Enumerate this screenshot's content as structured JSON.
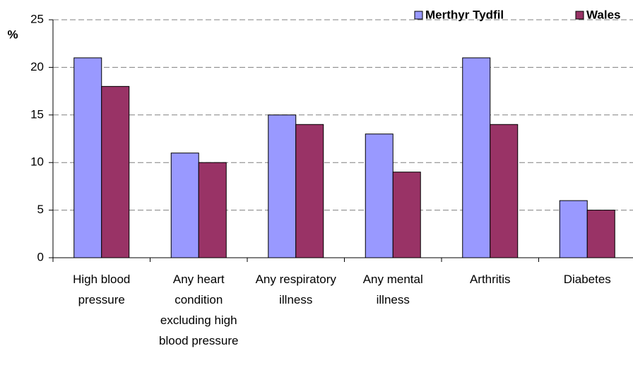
{
  "chart_data": {
    "type": "bar",
    "y_label": "%",
    "categories": [
      "High blood pressure",
      "Any heart condition excluding high blood pressure",
      "Any respiratory illness",
      "Any mental illness",
      "Arthritis",
      "Diabetes"
    ],
    "series": [
      {
        "name": "Merthyr Tydfil",
        "color": "#9999ff",
        "values": [
          21,
          11,
          15,
          13,
          21,
          6
        ]
      },
      {
        "name": "Wales",
        "color": "#993366",
        "values": [
          18,
          10,
          14,
          9,
          14,
          5
        ]
      }
    ],
    "ylim": [
      0,
      25
    ],
    "yticks": [
      0,
      5,
      10,
      15,
      20,
      25
    ],
    "grid": true,
    "legend": "top-right"
  }
}
